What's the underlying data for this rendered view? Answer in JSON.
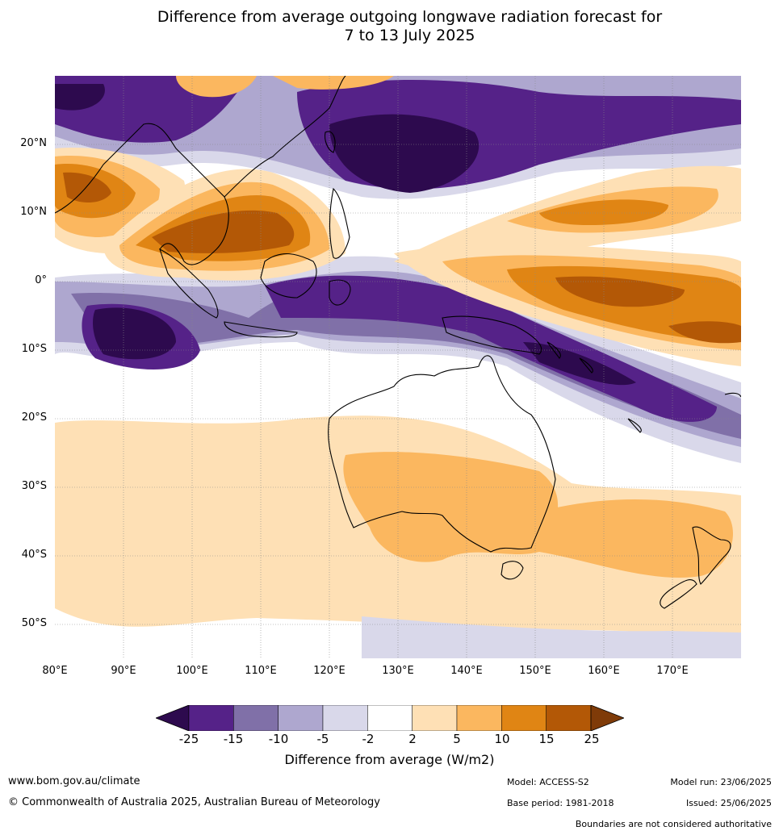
{
  "title_line1": "Difference from average outgoing longwave radiation forecast for",
  "title_line2": "7 to 13 July 2025",
  "lat_labels": [
    "20°N",
    "10°N",
    "0°",
    "10°S",
    "20°S",
    "30°S",
    "40°S",
    "50°S"
  ],
  "lon_labels": [
    "80°E",
    "90°E",
    "100°E",
    "110°E",
    "120°E",
    "130°E",
    "140°E",
    "150°E",
    "160°E",
    "170°E"
  ],
  "colorbar": {
    "ticks": [
      "-25",
      "-15",
      "-10",
      "-5",
      "-2",
      "2",
      "5",
      "10",
      "15",
      "25"
    ],
    "colors": [
      "#2d0a4e",
      "#552288",
      "#8070a8",
      "#aea7cf",
      "#d9d8ea",
      "#ffffff",
      "#fee0b5",
      "#fbb75f",
      "#e08514",
      "#b35806",
      "#7f3b08"
    ],
    "label": "Difference from average (W/m2)"
  },
  "footer": {
    "website": "www.bom.gov.au/climate",
    "copyright": "© Commonwealth of Australia 2025, Australian Bureau of Meteorology",
    "model": "Model: ACCESS-S2",
    "base_period": "Base period: 1981-2018",
    "model_run": "Model run: 23/06/2025",
    "issued": "Issued: 25/06/2025",
    "disclaimer": "Boundaries are not considered authoritative"
  }
}
